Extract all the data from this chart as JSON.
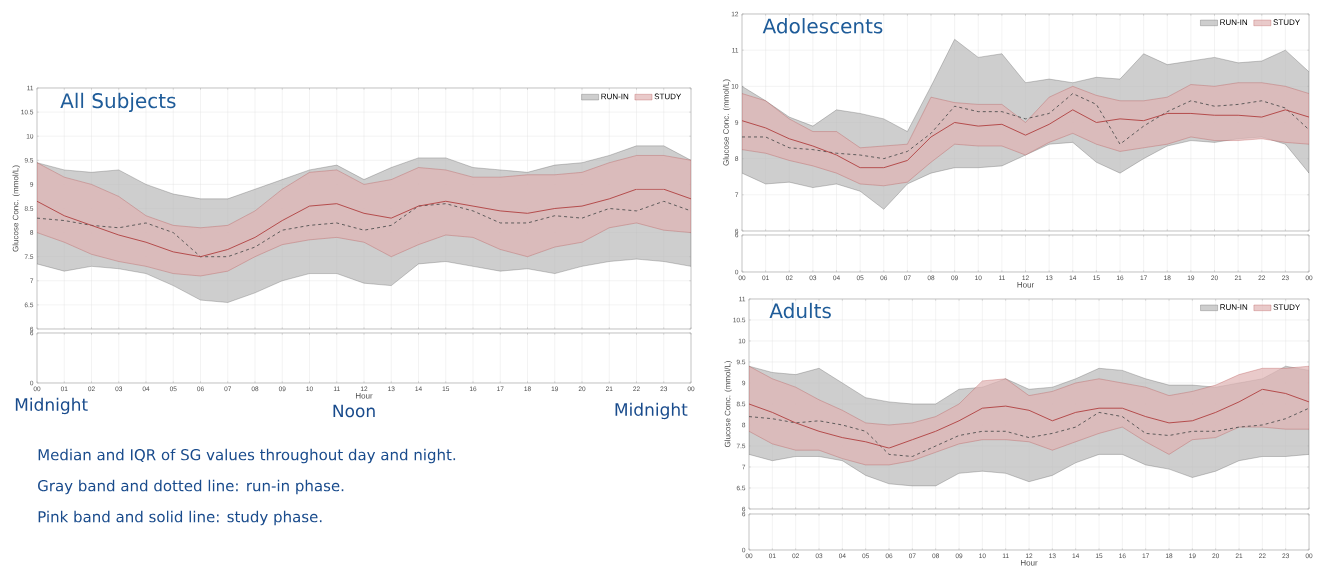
{
  "chart_data": [
    {
      "type": "line",
      "title": "All Subjects",
      "ylabel": "Glucose Conc. (mmol/L)",
      "xlim": [
        0,
        24
      ],
      "ylim": [
        6,
        11
      ],
      "yticks": [
        6,
        6.5,
        7,
        7.5,
        8,
        8.5,
        9,
        9.5,
        10,
        10.5,
        11
      ],
      "xticks": [
        {
          "value": 0,
          "label": null
        },
        {
          "value": 1,
          "label": null
        },
        {
          "value": 2,
          "label": null
        },
        {
          "value": 3,
          "label": null
        },
        {
          "value": 4,
          "label": null
        },
        {
          "value": 5,
          "label": null
        },
        {
          "value": 6,
          "label": null
        },
        {
          "value": 7,
          "label": null
        },
        {
          "value": 8,
          "label": null
        },
        {
          "value": 9,
          "label": null
        },
        {
          "value": 10,
          "label": null
        },
        {
          "value": 11,
          "label": null
        },
        {
          "value": 12,
          "label": null
        },
        {
          "value": 13,
          "label": null
        },
        {
          "value": 14,
          "label": null
        },
        {
          "value": 15,
          "label": null
        },
        {
          "value": 16,
          "label": null
        },
        {
          "value": 17,
          "label": null
        },
        {
          "value": 18,
          "label": null
        },
        {
          "value": 19,
          "label": null
        },
        {
          "value": 20,
          "label": null
        },
        {
          "value": 21,
          "label": null
        },
        {
          "value": 22,
          "label": null
        },
        {
          "value": 23,
          "label": null
        },
        {
          "value": 24,
          "label": null
        }
      ],
      "tick_labels": "y",
      "grid": true,
      "legend": "top right",
      "x": [
        0,
        1,
        2,
        3,
        4,
        5,
        6,
        7,
        8,
        9,
        10,
        11,
        12,
        13,
        14,
        15,
        16,
        17,
        18,
        19,
        20,
        21,
        22,
        23,
        24
      ],
      "series": [
        {
          "name": "RUN-IN",
          "color": "#505050",
          "line_style": "dashed",
          "values": [
            8.3,
            8.25,
            8.15,
            8.1,
            8.2,
            8.0,
            7.5,
            7.5,
            7.7,
            8.05,
            8.15,
            8.2,
            8.05,
            8.15,
            8.55,
            8.6,
            8.45,
            8.2,
            8.2,
            8.35,
            8.3,
            8.5,
            8.45,
            8.65,
            8.45
          ],
          "lower": [
            7.35,
            7.2,
            7.3,
            7.25,
            7.15,
            6.9,
            6.6,
            6.55,
            6.75,
            7.0,
            7.15,
            7.15,
            6.95,
            6.9,
            7.35,
            7.4,
            7.3,
            7.2,
            7.25,
            7.15,
            7.3,
            7.4,
            7.45,
            7.4,
            7.3
          ],
          "upper": [
            9.45,
            9.3,
            9.25,
            9.3,
            9.0,
            8.8,
            8.7,
            8.7,
            8.9,
            9.1,
            9.3,
            9.4,
            9.1,
            9.35,
            9.55,
            9.55,
            9.35,
            9.3,
            9.25,
            9.4,
            9.45,
            9.6,
            9.8,
            9.8,
            9.5
          ]
        },
        {
          "name": "STUDY",
          "color": "#b04040",
          "line_style": "solid",
          "values": [
            8.65,
            8.35,
            8.15,
            7.95,
            7.8,
            7.6,
            7.5,
            7.65,
            7.9,
            8.25,
            8.55,
            8.6,
            8.4,
            8.3,
            8.55,
            8.65,
            8.55,
            8.45,
            8.4,
            8.5,
            8.55,
            8.7,
            8.9,
            8.9,
            8.7
          ],
          "lower": [
            8.0,
            7.8,
            7.55,
            7.4,
            7.3,
            7.15,
            7.1,
            7.2,
            7.5,
            7.75,
            7.85,
            7.9,
            7.8,
            7.5,
            7.75,
            7.95,
            7.9,
            7.65,
            7.5,
            7.7,
            7.8,
            8.1,
            8.2,
            8.05,
            8.0
          ],
          "upper": [
            9.45,
            9.15,
            9.0,
            8.75,
            8.35,
            8.15,
            8.1,
            8.15,
            8.45,
            8.9,
            9.25,
            9.3,
            9.0,
            9.1,
            9.35,
            9.3,
            9.15,
            9.15,
            9.2,
            9.2,
            9.25,
            9.45,
            9.6,
            9.6,
            9.5
          ]
        }
      ]
    },
    {
      "type": "line",
      "xlabel": "Hour",
      "xlim": [
        0,
        24
      ],
      "ylim": [
        0,
        6
      ],
      "yticks": [
        0,
        6
      ],
      "xticks": [
        {
          "value": 0,
          "label": "00"
        },
        {
          "value": 1,
          "label": "01"
        },
        {
          "value": 2,
          "label": "02"
        },
        {
          "value": 3,
          "label": "03"
        },
        {
          "value": 4,
          "label": "04"
        },
        {
          "value": 5,
          "label": "05"
        },
        {
          "value": 6,
          "label": "06"
        },
        {
          "value": 7,
          "label": "07"
        },
        {
          "value": 8,
          "label": "08"
        },
        {
          "value": 9,
          "label": "09"
        },
        {
          "value": 10,
          "label": "10"
        },
        {
          "value": 11,
          "label": "11"
        },
        {
          "value": 12,
          "label": "12"
        },
        {
          "value": 13,
          "label": "13"
        },
        {
          "value": 14,
          "label": "14"
        },
        {
          "value": 15,
          "label": "15"
        },
        {
          "value": 16,
          "label": "16"
        },
        {
          "value": 17,
          "label": "17"
        },
        {
          "value": 18,
          "label": "18"
        },
        {
          "value": 19,
          "label": "19"
        },
        {
          "value": 20,
          "label": "20"
        },
        {
          "value": 21,
          "label": "21"
        },
        {
          "value": 22,
          "label": "22"
        },
        {
          "value": 23,
          "label": "23"
        },
        {
          "value": 24,
          "label": "00"
        }
      ],
      "grid": true,
      "annotations": [
        "Midnight",
        "Noon",
        "Midnight",
        "Median and IQR of SG values throughout day and night.",
        "Gray band and dotted line: run-in phase.",
        "Pink band and solid line: study phase."
      ]
    },
    {
      "type": "line",
      "title": "Adolescents",
      "ylabel": "Glucose Conc. (mmol/L)",
      "xlim": [
        0,
        24
      ],
      "ylim": [
        6,
        12
      ],
      "yticks": [
        6,
        7,
        8,
        9,
        10,
        11,
        12
      ],
      "xticks": [
        {
          "value": 0,
          "label": null
        },
        {
          "value": 1,
          "label": null
        },
        {
          "value": 2,
          "label": null
        },
        {
          "value": 3,
          "label": null
        },
        {
          "value": 4,
          "label": null
        },
        {
          "value": 5,
          "label": null
        },
        {
          "value": 6,
          "label": null
        },
        {
          "value": 7,
          "label": null
        },
        {
          "value": 8,
          "label": null
        },
        {
          "value": 9,
          "label": null
        },
        {
          "value": 10,
          "label": null
        },
        {
          "value": 11,
          "label": null
        },
        {
          "value": 12,
          "label": null
        },
        {
          "value": 13,
          "label": null
        },
        {
          "value": 14,
          "label": null
        },
        {
          "value": 15,
          "label": null
        },
        {
          "value": 16,
          "label": null
        },
        {
          "value": 17,
          "label": null
        },
        {
          "value": 18,
          "label": null
        },
        {
          "value": 19,
          "label": null
        },
        {
          "value": 20,
          "label": null
        },
        {
          "value": 21,
          "label": null
        },
        {
          "value": 22,
          "label": null
        },
        {
          "value": 23,
          "label": null
        },
        {
          "value": 24,
          "label": null
        }
      ],
      "tick_labels": "y",
      "grid": true,
      "legend": "top right",
      "x": [
        0,
        1,
        2,
        3,
        4,
        5,
        6,
        7,
        8,
        9,
        10,
        11,
        12,
        13,
        14,
        15,
        16,
        17,
        18,
        19,
        20,
        21,
        22,
        23,
        24
      ],
      "series": [
        {
          "name": "RUN-IN",
          "color": "#505050",
          "line_style": "dashed",
          "values": [
            8.6,
            8.6,
            8.3,
            8.25,
            8.15,
            8.1,
            8.0,
            8.2,
            8.7,
            9.45,
            9.3,
            9.3,
            9.1,
            9.25,
            9.8,
            9.5,
            8.4,
            8.9,
            9.3,
            9.6,
            9.45,
            9.5,
            9.6,
            9.4,
            8.8
          ],
          "lower": [
            7.6,
            7.3,
            7.35,
            7.2,
            7.3,
            7.1,
            6.6,
            7.3,
            7.6,
            7.75,
            7.75,
            7.8,
            8.1,
            8.4,
            8.45,
            7.9,
            7.6,
            8.0,
            8.35,
            8.5,
            8.45,
            8.55,
            8.6,
            8.4,
            7.6
          ],
          "upper": [
            10.0,
            9.6,
            9.15,
            8.9,
            9.35,
            9.25,
            9.1,
            8.75,
            10.0,
            11.3,
            10.8,
            10.9,
            10.1,
            10.2,
            10.1,
            10.25,
            10.2,
            10.9,
            10.6,
            10.7,
            10.8,
            10.65,
            10.7,
            11.0,
            10.4
          ]
        },
        {
          "name": "STUDY",
          "color": "#b04040",
          "line_style": "solid",
          "values": [
            9.05,
            8.85,
            8.55,
            8.35,
            8.1,
            7.75,
            7.75,
            7.95,
            8.6,
            9.0,
            8.9,
            8.95,
            8.65,
            8.95,
            9.35,
            9.0,
            9.1,
            9.05,
            9.25,
            9.25,
            9.2,
            9.2,
            9.15,
            9.35,
            9.15
          ],
          "lower": [
            8.25,
            8.15,
            7.95,
            7.8,
            7.6,
            7.3,
            7.25,
            7.35,
            7.9,
            8.4,
            8.35,
            8.35,
            8.1,
            8.45,
            8.7,
            8.4,
            8.2,
            8.3,
            8.4,
            8.6,
            8.5,
            8.5,
            8.55,
            8.45,
            8.4
          ],
          "upper": [
            9.8,
            9.6,
            9.1,
            8.75,
            8.75,
            8.3,
            8.35,
            8.4,
            9.7,
            9.55,
            9.5,
            9.5,
            9.0,
            9.7,
            10.0,
            9.75,
            9.6,
            9.6,
            9.7,
            10.05,
            10.0,
            10.1,
            10.1,
            10.0,
            9.8
          ]
        }
      ]
    },
    {
      "type": "line",
      "xlabel": "Hour",
      "xlim": [
        0,
        24
      ],
      "ylim": [
        0,
        6
      ],
      "yticks": [
        0,
        6
      ],
      "xticks": [
        {
          "value": 0,
          "label": "00"
        },
        {
          "value": 1,
          "label": "01"
        },
        {
          "value": 2,
          "label": "02"
        },
        {
          "value": 3,
          "label": "03"
        },
        {
          "value": 4,
          "label": "04"
        },
        {
          "value": 5,
          "label": "05"
        },
        {
          "value": 6,
          "label": "06"
        },
        {
          "value": 7,
          "label": "07"
        },
        {
          "value": 8,
          "label": "08"
        },
        {
          "value": 9,
          "label": "09"
        },
        {
          "value": 10,
          "label": "10"
        },
        {
          "value": 11,
          "label": "11"
        },
        {
          "value": 12,
          "label": "12"
        },
        {
          "value": 13,
          "label": "13"
        },
        {
          "value": 14,
          "label": "14"
        },
        {
          "value": 15,
          "label": "15"
        },
        {
          "value": 16,
          "label": "16"
        },
        {
          "value": 17,
          "label": "17"
        },
        {
          "value": 18,
          "label": "18"
        },
        {
          "value": 19,
          "label": "19"
        },
        {
          "value": 20,
          "label": "20"
        },
        {
          "value": 21,
          "label": "21"
        },
        {
          "value": 22,
          "label": "22"
        },
        {
          "value": 23,
          "label": "23"
        },
        {
          "value": 24,
          "label": "00"
        }
      ],
      "grid": true
    },
    {
      "type": "line",
      "title": "Adults",
      "ylabel": "Glucose Conc. (mmol/L)",
      "xlim": [
        0,
        24
      ],
      "ylim": [
        6,
        11
      ],
      "yticks": [
        6,
        6.5,
        7,
        7.5,
        8,
        8.5,
        9,
        9.5,
        10,
        10.5,
        11
      ],
      "xticks": [
        {
          "value": 0,
          "label": null
        },
        {
          "value": 1,
          "label": null
        },
        {
          "value": 2,
          "label": null
        },
        {
          "value": 3,
          "label": null
        },
        {
          "value": 4,
          "label": null
        },
        {
          "value": 5,
          "label": null
        },
        {
          "value": 6,
          "label": null
        },
        {
          "value": 7,
          "label": null
        },
        {
          "value": 8,
          "label": null
        },
        {
          "value": 9,
          "label": null
        },
        {
          "value": 10,
          "label": null
        },
        {
          "value": 11,
          "label": null
        },
        {
          "value": 12,
          "label": null
        },
        {
          "value": 13,
          "label": null
        },
        {
          "value": 14,
          "label": null
        },
        {
          "value": 15,
          "label": null
        },
        {
          "value": 16,
          "label": null
        },
        {
          "value": 17,
          "label": null
        },
        {
          "value": 18,
          "label": null
        },
        {
          "value": 19,
          "label": null
        },
        {
          "value": 20,
          "label": null
        },
        {
          "value": 21,
          "label": null
        },
        {
          "value": 22,
          "label": null
        },
        {
          "value": 23,
          "label": null
        },
        {
          "value": 24,
          "label": null
        }
      ],
      "tick_labels": "y",
      "grid": true,
      "legend": "top right",
      "x": [
        0,
        1,
        2,
        3,
        4,
        5,
        6,
        7,
        8,
        9,
        10,
        11,
        12,
        13,
        14,
        15,
        16,
        17,
        18,
        19,
        20,
        21,
        22,
        23,
        24
      ],
      "series": [
        {
          "name": "RUN-IN",
          "color": "#505050",
          "line_style": "dashed",
          "values": [
            8.2,
            8.15,
            8.05,
            8.1,
            8.0,
            7.85,
            7.3,
            7.25,
            7.5,
            7.75,
            7.85,
            7.85,
            7.7,
            7.8,
            7.95,
            8.3,
            8.2,
            7.8,
            7.75,
            7.85,
            7.85,
            7.95,
            8.0,
            8.15,
            8.4
          ],
          "lower": [
            7.3,
            7.15,
            7.25,
            7.25,
            7.15,
            6.8,
            6.6,
            6.55,
            6.55,
            6.85,
            6.9,
            6.85,
            6.65,
            6.8,
            7.1,
            7.3,
            7.3,
            7.05,
            6.95,
            6.75,
            6.9,
            7.15,
            7.25,
            7.25,
            7.3
          ],
          "upper": [
            9.4,
            9.25,
            9.2,
            9.35,
            9.0,
            8.65,
            8.55,
            8.5,
            8.5,
            8.85,
            8.9,
            9.1,
            8.85,
            8.9,
            9.1,
            9.35,
            9.3,
            9.1,
            8.95,
            8.95,
            8.9,
            9.0,
            9.1,
            9.4,
            9.3
          ]
        },
        {
          "name": "STUDY",
          "color": "#b04040",
          "line_style": "solid",
          "values": [
            8.5,
            8.3,
            8.05,
            7.85,
            7.7,
            7.6,
            7.45,
            7.65,
            7.85,
            8.1,
            8.4,
            8.45,
            8.35,
            8.1,
            8.3,
            8.4,
            8.4,
            8.2,
            8.05,
            8.1,
            8.3,
            8.55,
            8.85,
            8.75,
            8.55
          ],
          "lower": [
            7.85,
            7.55,
            7.4,
            7.4,
            7.2,
            7.05,
            7.05,
            7.15,
            7.35,
            7.55,
            7.65,
            7.65,
            7.6,
            7.4,
            7.6,
            7.8,
            7.95,
            7.6,
            7.3,
            7.65,
            7.7,
            7.95,
            7.95,
            7.9,
            7.9
          ],
          "upper": [
            9.4,
            9.1,
            8.9,
            8.6,
            8.35,
            8.05,
            8.0,
            8.05,
            8.2,
            8.5,
            9.05,
            9.1,
            8.7,
            8.8,
            9.0,
            9.1,
            9.0,
            8.9,
            8.7,
            8.8,
            8.95,
            9.2,
            9.35,
            9.35,
            9.4
          ]
        }
      ]
    },
    {
      "type": "line",
      "xlabel": "Hour",
      "xlim": [
        0,
        24
      ],
      "ylim": [
        0,
        6
      ],
      "yticks": [
        0,
        6
      ],
      "xticks": [
        {
          "value": 0,
          "label": "00"
        },
        {
          "value": 1,
          "label": "01"
        },
        {
          "value": 2,
          "label": "02"
        },
        {
          "value": 3,
          "label": "03"
        },
        {
          "value": 4,
          "label": "04"
        },
        {
          "value": 5,
          "label": "05"
        },
        {
          "value": 6,
          "label": "06"
        },
        {
          "value": 7,
          "label": "07"
        },
        {
          "value": 8,
          "label": "08"
        },
        {
          "value": 9,
          "label": "09"
        },
        {
          "value": 10,
          "label": "10"
        },
        {
          "value": 11,
          "label": "11"
        },
        {
          "value": 12,
          "label": "12"
        },
        {
          "value": 13,
          "label": "13"
        },
        {
          "value": 14,
          "label": "14"
        },
        {
          "value": 15,
          "label": "15"
        },
        {
          "value": 16,
          "label": "16"
        },
        {
          "value": 17,
          "label": "17"
        },
        {
          "value": 18,
          "label": "18"
        },
        {
          "value": 19,
          "label": "19"
        },
        {
          "value": 20,
          "label": "20"
        },
        {
          "value": 21,
          "label": "21"
        },
        {
          "value": 22,
          "label": "22"
        },
        {
          "value": 23,
          "label": "23"
        },
        {
          "value": 24,
          "label": "00"
        }
      ],
      "grid": true
    }
  ]
}
